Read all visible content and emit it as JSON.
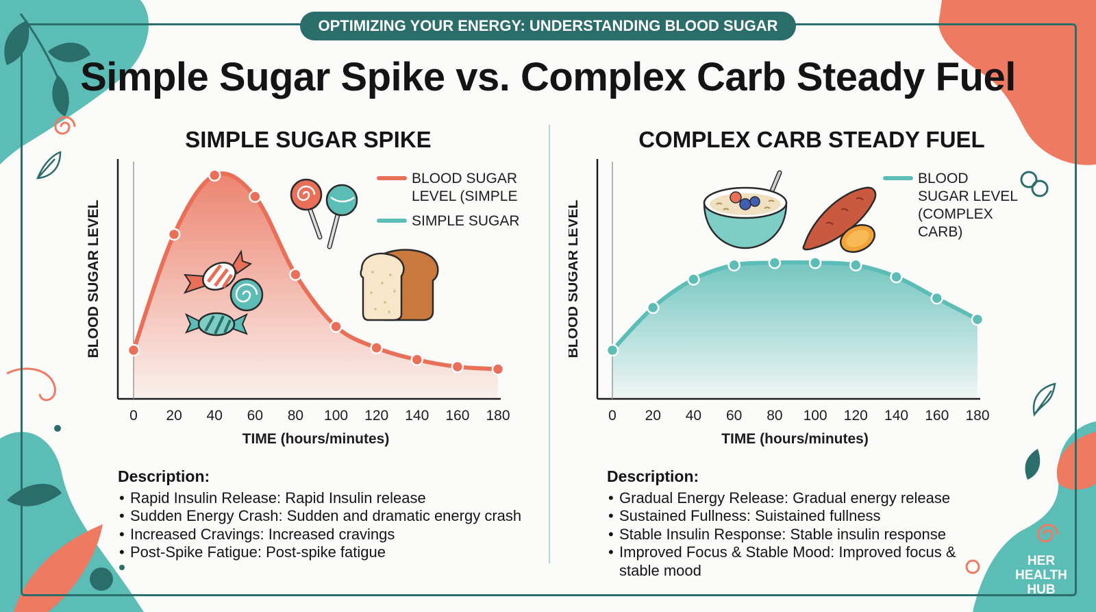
{
  "banner": "OPTIMIZING YOUR ENERGY: UNDERSTANDING BLOOD SUGAR",
  "title": "Simple Sugar Spike vs. Complex Carb Steady Fuel",
  "brand": [
    "HER",
    "HEALTH",
    "HUB"
  ],
  "colors": {
    "coral": "#ea6f58",
    "teal": "#5cbcb6",
    "dark_teal": "#2b6d6b"
  },
  "chart_data": [
    {
      "type": "area",
      "title": "SIMPLE SUGAR SPIKE",
      "xlabel": "TIME (hours/minutes)",
      "ylabel": "BLOOD SUGAR LEVEL",
      "x": [
        0,
        20,
        40,
        60,
        80,
        100,
        120,
        140,
        160,
        180
      ],
      "xlim": [
        0,
        180
      ],
      "ylim": [
        0,
        100
      ],
      "series": [
        {
          "name": "BLOOD SUGAR LEVEL (SIMPLE",
          "color": "#ea6f58",
          "values": [
            20,
            69,
            94,
            85,
            52,
            30,
            21,
            16,
            13,
            12
          ]
        }
      ],
      "legend": [
        {
          "label": [
            "BLOOD SUGAR",
            "LEVEL (SIMPLE"
          ],
          "color": "#ea6f58"
        },
        {
          "label": [
            "SIMPLE SUGAR"
          ],
          "color": "#5cbcb6"
        }
      ],
      "illustrations": [
        "lollipop-icon",
        "candy-icon",
        "bread-icon"
      ],
      "description_heading": "Description:",
      "description": [
        "Rapid Insulin Release: Rapid Insulin release",
        "Sudden Energy Crash: Sudden and dramatic energy crash",
        "Increased Cravings: Increased cravings",
        "Post-Spike Fatigue: Post-spike fatigue"
      ]
    },
    {
      "type": "area",
      "title": "COMPLEX CARB STEADY FUEL",
      "xlabel": "TIME (hours/minutes)",
      "ylabel": "BLOOD SUGAR LEVEL",
      "x": [
        0,
        20,
        40,
        60,
        80,
        100,
        120,
        140,
        160,
        180
      ],
      "xlim": [
        0,
        180
      ],
      "ylim": [
        0,
        100
      ],
      "series": [
        {
          "name": "BLOOD SUGAR LEVEL (COMPLEX CARB)",
          "color": "#5cbcb6",
          "values": [
            20,
            38,
            50,
            56,
            57,
            57,
            56,
            51,
            42,
            33
          ]
        }
      ],
      "legend": [
        {
          "label": [
            "BLOOD",
            "SUGAR LEVEL",
            "(COMPLEX",
            "CARB)"
          ],
          "color": "#5cbcb6"
        }
      ],
      "illustrations": [
        "oatmeal-bowl-icon",
        "sweet-potato-icon"
      ],
      "description_heading": "Description:",
      "description": [
        "Gradual Energy Release: Gradual energy release",
        "Sustained Fullness: Suistained fullness",
        "Stable Insulin Response: Stable insulin response",
        "Improved Focus & Stable Mood: Improved focus & stable mood"
      ]
    }
  ]
}
